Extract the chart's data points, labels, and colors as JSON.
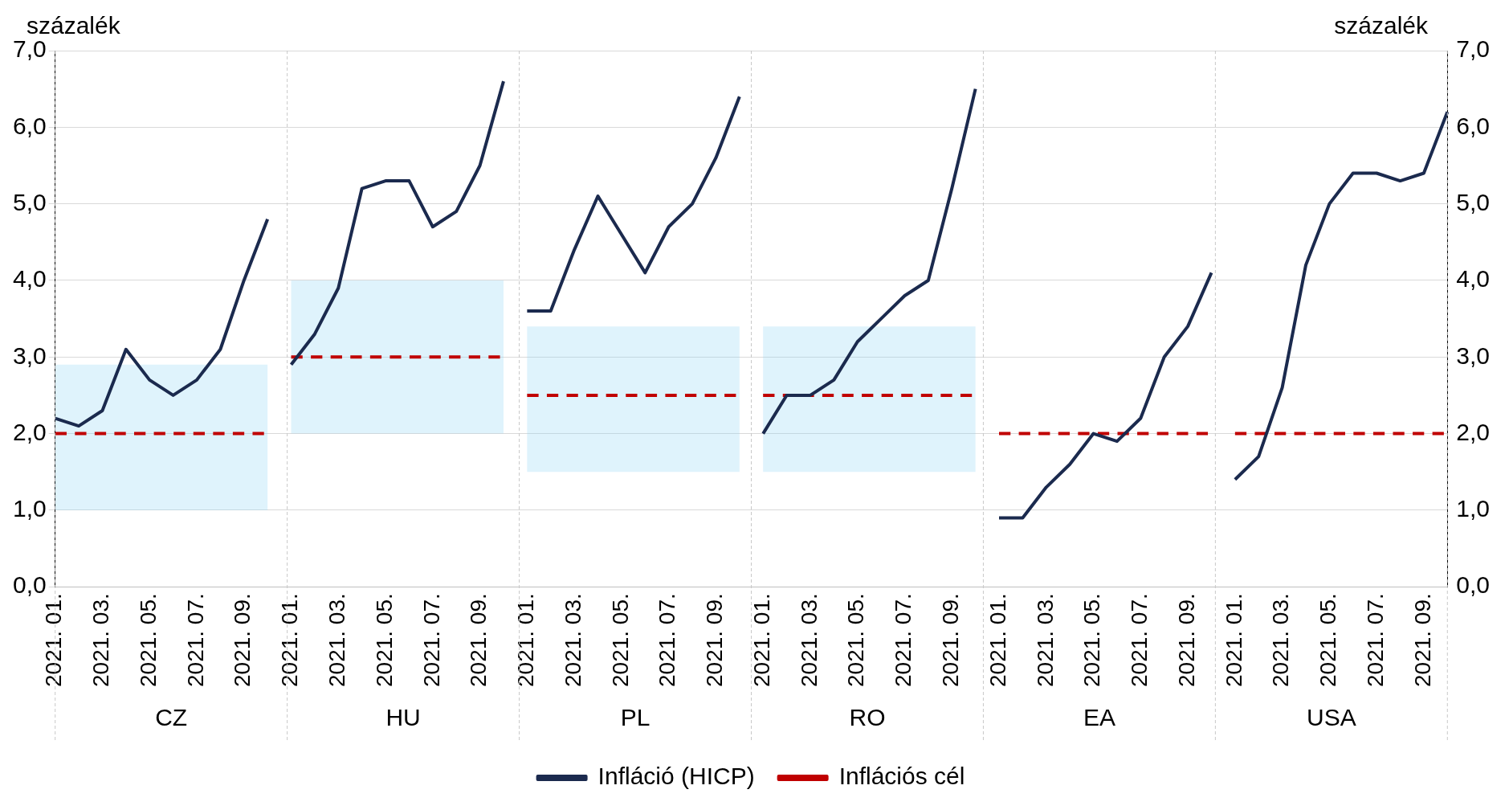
{
  "chart_data": {
    "type": "line",
    "ylabel": "százalék",
    "y2label": "százalék",
    "categories": [
      "2021. 01.",
      null,
      "2021. 03.",
      null,
      "2021. 05.",
      null,
      "2021. 07.",
      null,
      "2021. 09.",
      null,
      "2021. 01.",
      null,
      "2021. 03.",
      null,
      "2021. 05.",
      null,
      "2021. 07.",
      null,
      "2021. 09.",
      null,
      "2021. 01.",
      null,
      "2021. 03.",
      null,
      "2021. 05.",
      null,
      "2021. 07.",
      null,
      "2021. 09.",
      null,
      "2021. 01.",
      null,
      "2021. 03.",
      null,
      "2021. 05.",
      null,
      "2021. 07.",
      null,
      "2021. 09.",
      null,
      "2021. 01.",
      null,
      "2021. 03.",
      null,
      "2021. 05.",
      null,
      "2021. 07.",
      null,
      "2021. 09.",
      null,
      "2021. 01.",
      null,
      "2021. 03.",
      null,
      "2021. 05.",
      null,
      "2021. 07.",
      null,
      "2021. 09.",
      null
    ],
    "annotations": [
      "CZ",
      "HU",
      "PL",
      "RO",
      "EA",
      "USA"
    ],
    "series": [
      {
        "name": "Infláció (HICP)",
        "color": "#1b2a4e",
        "values": [
          2.2,
          2.1,
          2.3,
          3.1,
          2.7,
          2.5,
          2.7,
          3.1,
          4.0,
          4.8,
          2.9,
          3.3,
          3.9,
          5.2,
          5.3,
          5.3,
          4.7,
          4.9,
          5.5,
          6.6,
          3.6,
          3.6,
          4.4,
          5.1,
          4.6,
          4.1,
          4.7,
          5.0,
          5.6,
          6.4,
          2.0,
          2.5,
          2.5,
          2.7,
          3.2,
          3.5,
          3.8,
          4.0,
          5.2,
          6.5,
          0.9,
          0.9,
          1.3,
          1.6,
          2.0,
          1.9,
          2.2,
          3.0,
          3.4,
          4.1,
          1.4,
          1.7,
          2.6,
          4.2,
          5.0,
          5.4,
          5.4,
          5.3,
          5.4,
          6.2
        ]
      },
      {
        "name": "Inflációs cél",
        "color": "#c00000",
        "line_style": "dashed",
        "values": [
          2,
          2,
          2,
          2,
          2,
          2,
          2,
          2,
          2,
          2,
          3,
          3,
          3,
          3,
          3,
          3,
          3,
          3,
          3,
          3,
          2.5,
          2.5,
          2.5,
          2.5,
          2.5,
          2.5,
          2.5,
          2.5,
          2.5,
          2.5,
          2.5,
          2.5,
          2.5,
          2.5,
          2.5,
          2.5,
          2.5,
          2.5,
          2.5,
          2.5,
          2,
          2,
          2,
          2,
          2,
          2,
          2,
          2,
          2,
          2,
          2,
          2,
          2,
          2,
          2,
          2,
          2,
          2,
          2,
          2
        ],
        "lower": [
          1.0,
          1.0,
          1.0,
          1.0,
          1.0,
          1.0,
          1.0,
          1.0,
          1.0,
          1.0,
          2.0,
          2.0,
          2.0,
          2.0,
          2.0,
          2.0,
          2.0,
          2.0,
          2.0,
          2.0,
          1.5,
          1.5,
          1.5,
          1.5,
          1.5,
          1.5,
          1.5,
          1.5,
          1.5,
          1.5,
          1.5,
          1.5,
          1.5,
          1.5,
          1.5,
          1.5,
          1.5,
          1.5,
          1.5,
          1.5,
          null,
          null,
          null,
          null,
          null,
          null,
          null,
          null,
          null,
          null,
          null,
          null,
          null,
          null,
          null,
          null,
          null,
          null,
          null,
          null
        ],
        "upper": [
          2.9,
          2.9,
          2.9,
          2.9,
          2.9,
          2.9,
          2.9,
          2.9,
          2.9,
          2.9,
          4.0,
          4.0,
          4.0,
          4.0,
          4.0,
          4.0,
          4.0,
          4.0,
          4.0,
          4.0,
          3.4,
          3.4,
          3.4,
          3.4,
          3.4,
          3.4,
          3.4,
          3.4,
          3.4,
          3.4,
          3.4,
          3.4,
          3.4,
          3.4,
          3.4,
          3.4,
          3.4,
          3.4,
          3.4,
          3.4,
          null,
          null,
          null,
          null,
          null,
          null,
          null,
          null,
          null,
          null,
          null,
          null,
          null,
          null,
          null,
          null,
          null,
          null,
          null,
          null
        ]
      }
    ],
    "ylim": [
      0,
      7
    ],
    "yticks": [
      {
        "value": 0,
        "label": "0,0"
      },
      {
        "value": 1,
        "label": "1,0"
      },
      {
        "value": 2,
        "label": "2,0"
      },
      {
        "value": 3,
        "label": "3,0"
      },
      {
        "value": 4,
        "label": "4,0"
      },
      {
        "value": 5,
        "label": "5,0"
      },
      {
        "value": 6,
        "label": "6,0"
      },
      {
        "value": 7,
        "label": "7,0"
      }
    ],
    "y2lim": [
      0,
      7
    ],
    "y2ticks": [
      {
        "value": 0,
        "label": "0,0"
      },
      {
        "value": 1,
        "label": "1,0"
      },
      {
        "value": 2,
        "label": "2,0"
      },
      {
        "value": 3,
        "label": "3,0"
      },
      {
        "value": 4,
        "label": "4,0"
      },
      {
        "value": 5,
        "label": "5,0"
      },
      {
        "value": 6,
        "label": "6,0"
      },
      {
        "value": 7,
        "label": "7,0"
      }
    ],
    "grid": "y",
    "legend": "bottom",
    "marker": "none"
  }
}
